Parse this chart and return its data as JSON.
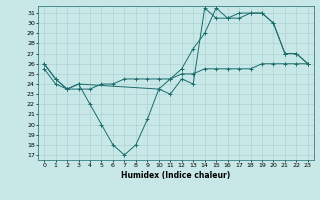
{
  "title": "",
  "xlabel": "Humidex (Indice chaleur)",
  "bg_color": "#c8e8e8",
  "line_color": "#1a6b6b",
  "xlim": [
    -0.5,
    23.5
  ],
  "ylim": [
    16.5,
    31.7
  ],
  "yticks": [
    17,
    18,
    19,
    20,
    21,
    22,
    23,
    24,
    25,
    26,
    27,
    28,
    29,
    30,
    31
  ],
  "xticks": [
    0,
    1,
    2,
    3,
    4,
    5,
    6,
    7,
    8,
    9,
    10,
    11,
    12,
    13,
    14,
    15,
    16,
    17,
    18,
    19,
    20,
    21,
    22,
    23
  ],
  "line1_x": [
    0,
    1,
    2,
    3,
    4,
    5,
    6,
    7,
    8,
    9,
    10,
    11,
    12,
    13,
    14,
    15,
    16,
    17,
    18,
    19,
    20,
    21,
    22,
    23
  ],
  "line1_y": [
    26.0,
    24.5,
    23.5,
    24.0,
    22.0,
    20.0,
    18.0,
    17.0,
    18.0,
    20.5,
    23.5,
    23.0,
    24.5,
    24.0,
    31.5,
    30.5,
    30.5,
    31.0,
    31.0,
    31.0,
    30.0,
    27.0,
    27.0,
    26.0
  ],
  "line2_x": [
    0,
    1,
    2,
    3,
    10,
    11,
    12,
    13,
    14,
    15,
    16,
    17,
    18,
    19,
    20,
    21,
    22,
    23
  ],
  "line2_y": [
    26.0,
    24.5,
    23.5,
    24.0,
    23.5,
    24.5,
    25.5,
    27.5,
    29.0,
    31.5,
    30.5,
    30.5,
    31.0,
    31.0,
    30.0,
    27.0,
    27.0,
    26.0
  ],
  "line3_x": [
    0,
    1,
    2,
    3,
    4,
    5,
    6,
    7,
    8,
    9,
    10,
    11,
    12,
    13,
    14,
    15,
    16,
    17,
    18,
    19,
    20,
    21,
    22,
    23
  ],
  "line3_y": [
    25.5,
    24.0,
    23.5,
    23.5,
    23.5,
    24.0,
    24.0,
    24.5,
    24.5,
    24.5,
    24.5,
    24.5,
    25.0,
    25.0,
    25.5,
    25.5,
    25.5,
    25.5,
    25.5,
    26.0,
    26.0,
    26.0,
    26.0,
    26.0
  ]
}
